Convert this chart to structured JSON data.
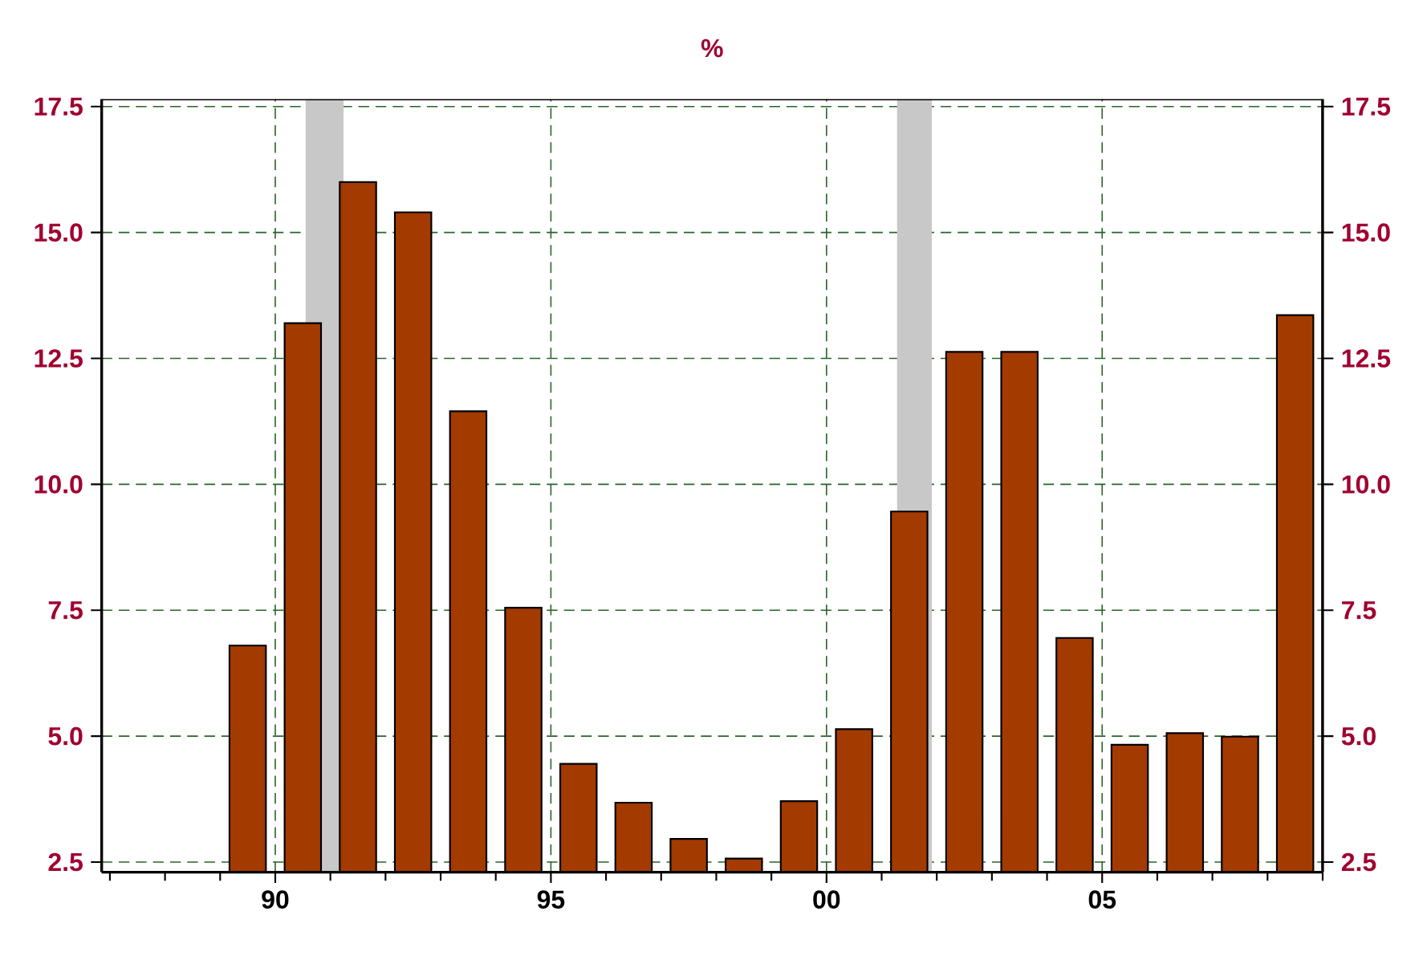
{
  "chart_data": {
    "type": "bar",
    "title": "%",
    "x": [
      1989.5,
      1990.5,
      1991.5,
      1992.5,
      1993.5,
      1994.5,
      1995.5,
      1996.5,
      1997.5,
      1998.5,
      1999.5,
      2000.5,
      2001.5,
      2002.5,
      2003.5,
      2004.5,
      2005.5,
      2006.5,
      2007.5,
      2008.5
    ],
    "values": [
      6.8,
      13.2,
      16.0,
      15.4,
      11.45,
      7.55,
      4.45,
      3.68,
      2.96,
      2.57,
      3.71,
      5.14,
      9.46,
      12.63,
      12.63,
      6.95,
      4.83,
      5.06,
      4.99,
      13.36
    ],
    "color": "#a33a00",
    "xlim": [
      1986.85,
      2009.0
    ],
    "xticks": [
      {
        "value": 1987,
        "label": null
      },
      {
        "value": 1988,
        "label": null
      },
      {
        "value": 1989,
        "label": null
      },
      {
        "value": 1990,
        "label": "90"
      },
      {
        "value": 1991,
        "label": null
      },
      {
        "value": 1992,
        "label": null
      },
      {
        "value": 1993,
        "label": null
      },
      {
        "value": 1994,
        "label": null
      },
      {
        "value": 1995,
        "label": "95"
      },
      {
        "value": 1996,
        "label": null
      },
      {
        "value": 1997,
        "label": null
      },
      {
        "value": 1998,
        "label": null
      },
      {
        "value": 1999,
        "label": null
      },
      {
        "value": 2000,
        "label": "00"
      },
      {
        "value": 2001,
        "label": null
      },
      {
        "value": 2002,
        "label": null
      },
      {
        "value": 2003,
        "label": null
      },
      {
        "value": 2004,
        "label": null
      },
      {
        "value": 2005,
        "label": "05"
      },
      {
        "value": 2006,
        "label": null
      },
      {
        "value": 2007,
        "label": null
      },
      {
        "value": 2008,
        "label": null
      },
      {
        "value": 2009,
        "label": null
      }
    ],
    "ylim": [
      2.3,
      17.65
    ],
    "yticks": [
      2.5,
      {
        "value": 5.0,
        "label": "5.0"
      },
      7.5,
      {
        "value": 10.0,
        "label": "10.0"
      },
      12.5,
      {
        "value": 15.0,
        "label": "15.0"
      },
      17.5
    ],
    "y2lim": [
      2.3,
      17.65
    ],
    "y2ticks": [
      2.5,
      {
        "value": 5.0,
        "label": "5.0"
      },
      7.5,
      {
        "value": 10.0,
        "label": "10.0"
      },
      12.5,
      {
        "value": 15.0,
        "label": "15.0"
      },
      17.5
    ],
    "grid": true,
    "bands": [
      {
        "axis": "x",
        "from": 1990.55,
        "to": 1991.24,
        "color": "#c8c8c8"
      },
      {
        "axis": "x",
        "from": 2001.28,
        "to": 2001.91,
        "color": "#c8c8c8"
      }
    ]
  }
}
